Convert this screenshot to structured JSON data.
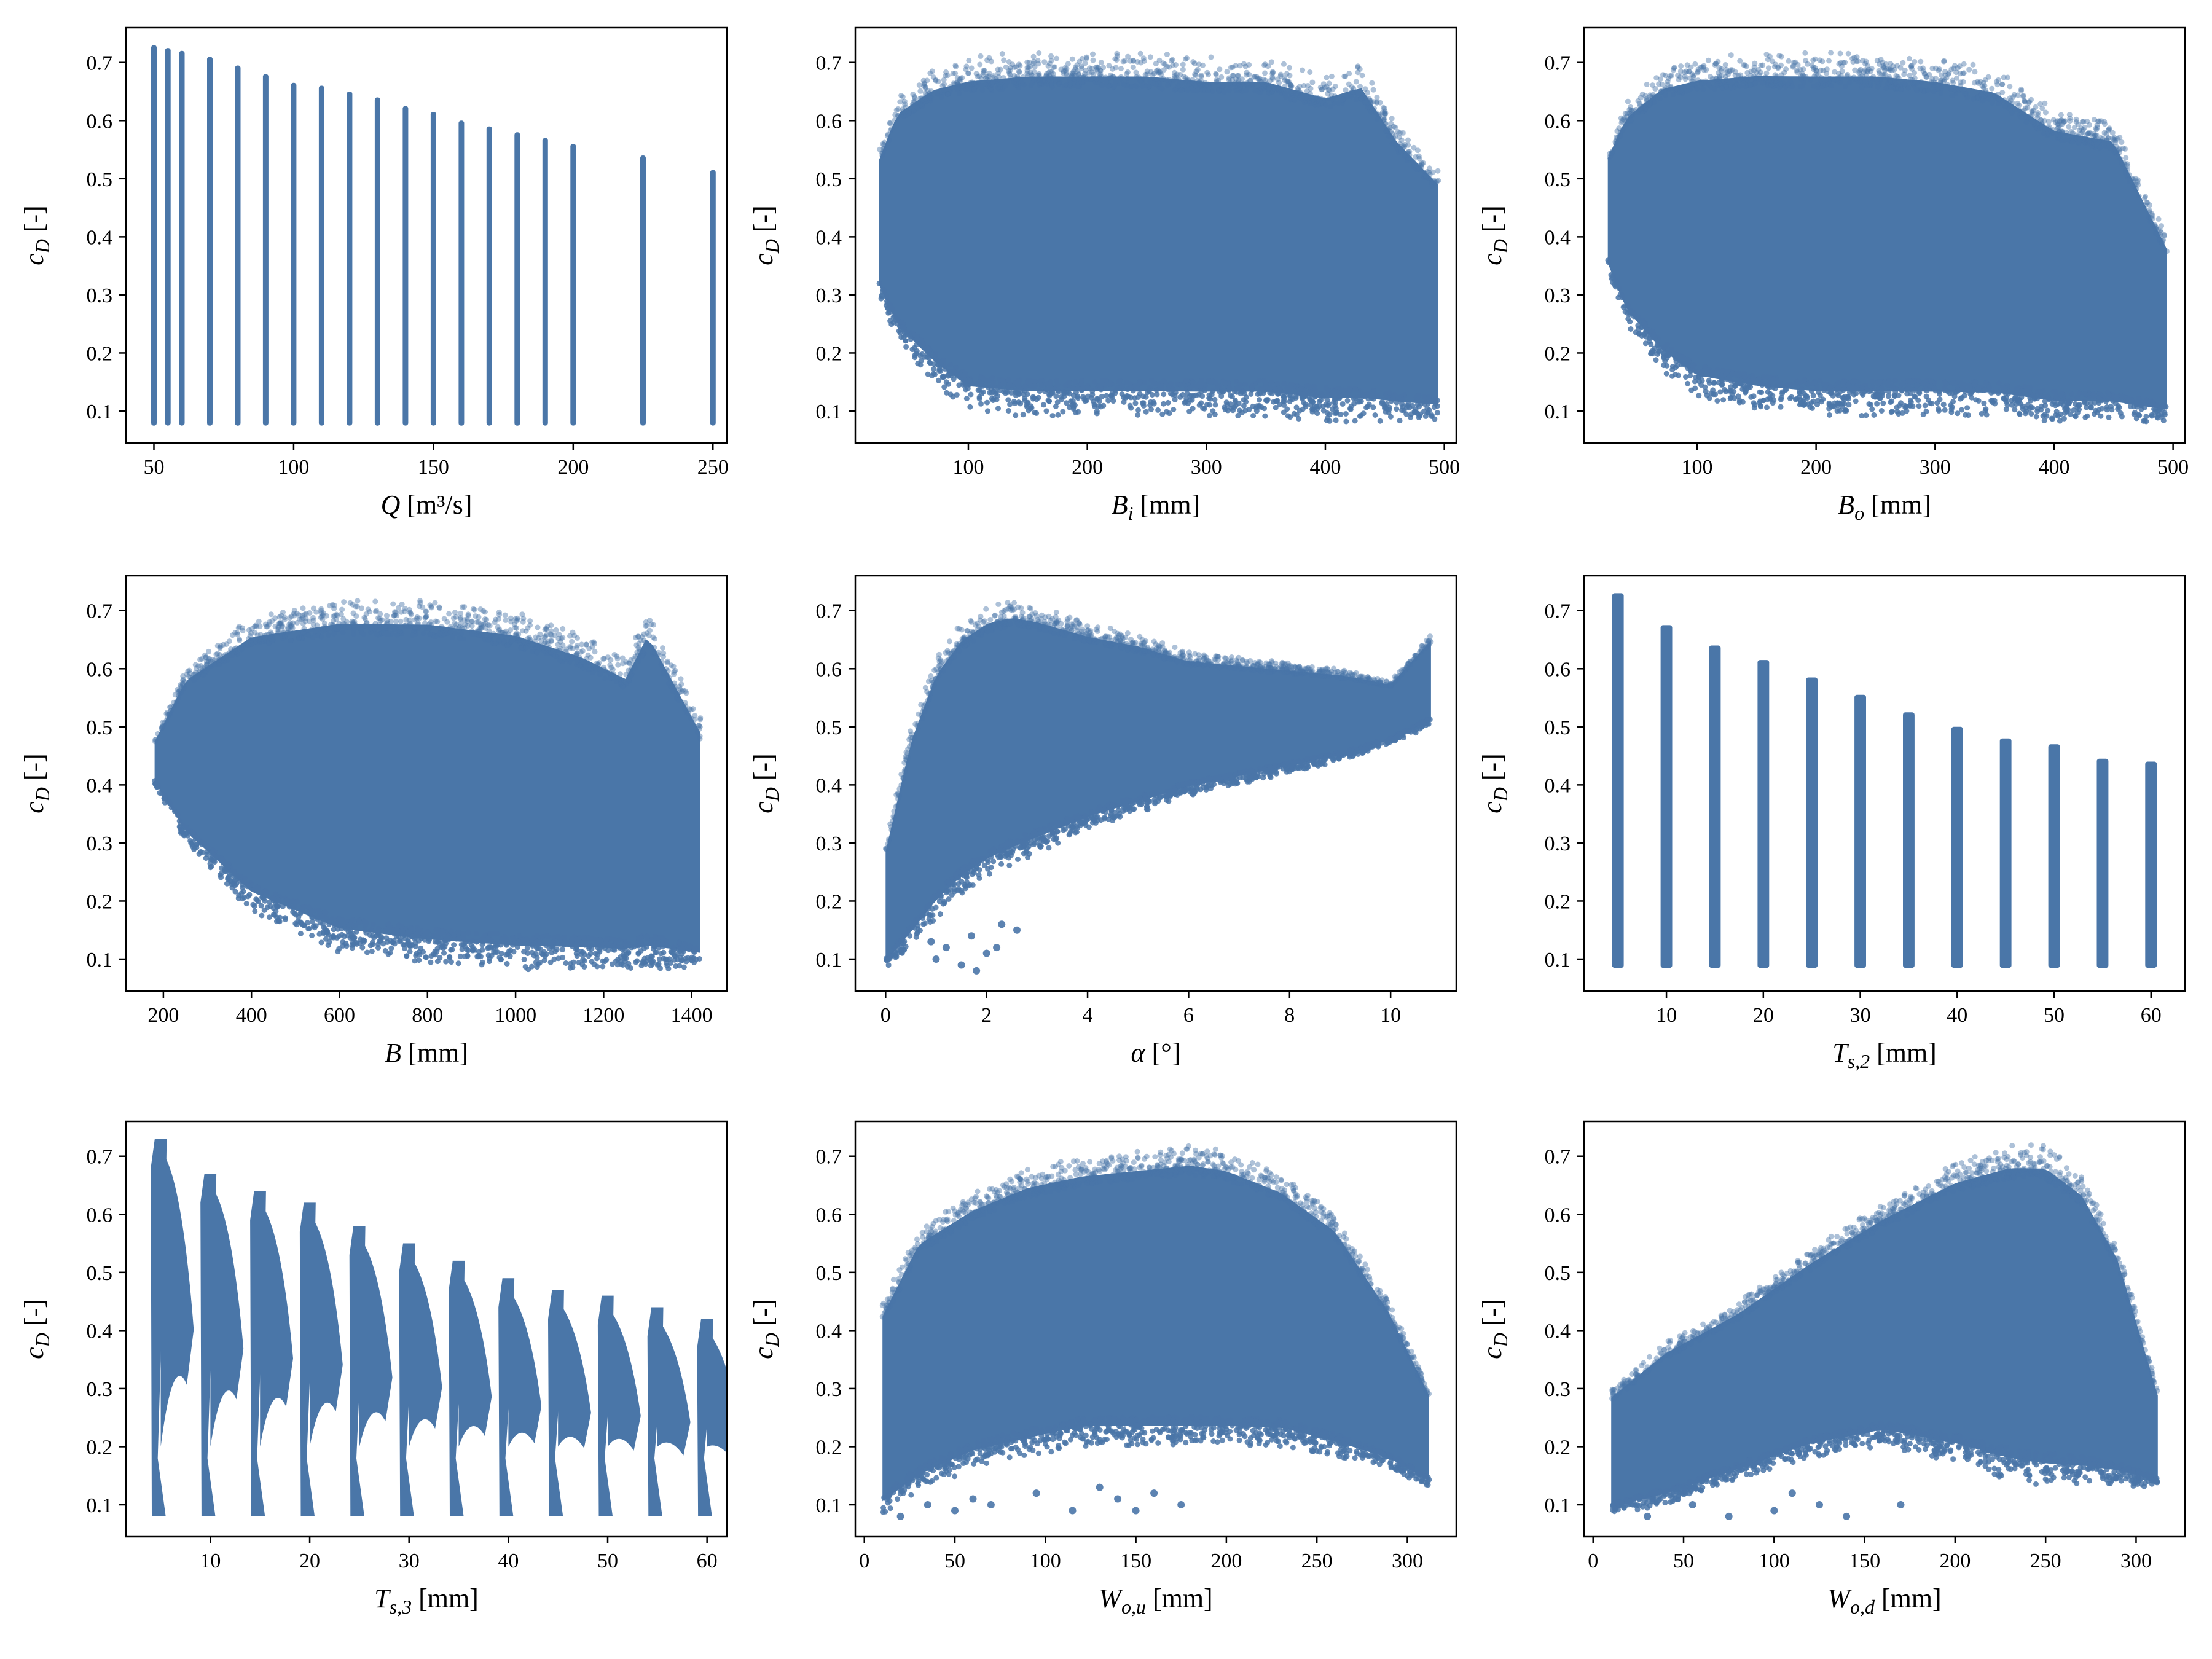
{
  "chart_data": [
    {
      "type": "scatter",
      "xlabel": {
        "var": "Q",
        "sub": "",
        "unit": "[m³/s]"
      },
      "ylabel": {
        "var": "c",
        "sub": "D",
        "unit": "[-]"
      },
      "xlim": [
        40,
        255
      ],
      "ylim": [
        0.045,
        0.76
      ],
      "xticks": [
        50,
        100,
        150,
        200,
        250
      ],
      "yticks": [
        0.1,
        0.2,
        0.3,
        0.4,
        0.5,
        0.6,
        0.7
      ],
      "pattern": "bands",
      "bands": [
        [
          50,
          0.73
        ],
        [
          55,
          0.725
        ],
        [
          60,
          0.72
        ],
        [
          70,
          0.71
        ],
        [
          80,
          0.695
        ],
        [
          90,
          0.68
        ],
        [
          100,
          0.665
        ],
        [
          110,
          0.66
        ],
        [
          120,
          0.65
        ],
        [
          130,
          0.64
        ],
        [
          140,
          0.625
        ],
        [
          150,
          0.615
        ],
        [
          160,
          0.6
        ],
        [
          170,
          0.59
        ],
        [
          180,
          0.58
        ],
        [
          190,
          0.57
        ],
        [
          200,
          0.56
        ],
        [
          225,
          0.54
        ],
        [
          250,
          0.515
        ]
      ],
      "band_ymin": 0.075
    },
    {
      "type": "scatter",
      "xlabel": {
        "var": "B",
        "sub": "i",
        "unit": "[mm]"
      },
      "ylabel": {
        "var": "c",
        "sub": "D",
        "unit": "[-]"
      },
      "xlim": [
        5,
        510
      ],
      "ylim": [
        0.045,
        0.76
      ],
      "xticks": [
        100,
        200,
        300,
        400,
        500
      ],
      "yticks": [
        0.1,
        0.2,
        0.3,
        0.4,
        0.5,
        0.6,
        0.7
      ],
      "pattern": "cloud",
      "envelope_x": [
        25,
        40,
        70,
        100,
        150,
        200,
        250,
        300,
        350,
        400,
        430,
        460,
        495
      ],
      "envelope_top": [
        0.55,
        0.64,
        0.69,
        0.71,
        0.72,
        0.72,
        0.72,
        0.71,
        0.71,
        0.68,
        0.7,
        0.6,
        0.52
      ],
      "envelope_bottom": [
        0.3,
        0.22,
        0.15,
        0.1,
        0.09,
        0.09,
        0.09,
        0.09,
        0.09,
        0.08,
        0.08,
        0.08,
        0.08
      ]
    },
    {
      "type": "scatter",
      "xlabel": {
        "var": "B",
        "sub": "o",
        "unit": "[mm]"
      },
      "ylabel": {
        "var": "c",
        "sub": "D",
        "unit": "[-]"
      },
      "xlim": [
        5,
        510
      ],
      "ylim": [
        0.045,
        0.76
      ],
      "xticks": [
        100,
        200,
        300,
        400,
        500
      ],
      "yticks": [
        0.1,
        0.2,
        0.3,
        0.4,
        0.5,
        0.6,
        0.7
      ],
      "pattern": "cloud",
      "envelope_x": [
        25,
        40,
        70,
        100,
        150,
        200,
        250,
        300,
        350,
        400,
        450,
        495
      ],
      "envelope_top": [
        0.55,
        0.63,
        0.69,
        0.71,
        0.72,
        0.72,
        0.72,
        0.71,
        0.69,
        0.62,
        0.6,
        0.4
      ],
      "envelope_bottom": [
        0.34,
        0.25,
        0.17,
        0.12,
        0.1,
        0.09,
        0.09,
        0.09,
        0.09,
        0.08,
        0.08,
        0.08
      ]
    },
    {
      "type": "scatter",
      "xlabel": {
        "var": "B",
        "sub": "",
        "unit": "[mm]"
      },
      "ylabel": {
        "var": "c",
        "sub": "D",
        "unit": "[-]"
      },
      "xlim": [
        115,
        1480
      ],
      "ylim": [
        0.045,
        0.76
      ],
      "xticks": [
        200,
        400,
        600,
        800,
        1000,
        1200,
        1400
      ],
      "yticks": [
        0.1,
        0.2,
        0.3,
        0.4,
        0.5,
        0.6,
        0.7
      ],
      "pattern": "cloud",
      "envelope_x": [
        180,
        250,
        400,
        600,
        800,
        1000,
        1150,
        1250,
        1300,
        1420
      ],
      "envelope_top": [
        0.48,
        0.6,
        0.69,
        0.72,
        0.72,
        0.7,
        0.66,
        0.62,
        0.7,
        0.52
      ],
      "envelope_bottom": [
        0.4,
        0.3,
        0.18,
        0.11,
        0.09,
        0.08,
        0.08,
        0.08,
        0.08,
        0.08
      ]
    },
    {
      "type": "scatter",
      "xlabel": {
        "var": "α",
        "sub": "",
        "unit": "[°]"
      },
      "ylabel": {
        "var": "c",
        "sub": "D",
        "unit": "[-]"
      },
      "xlim": [
        -0.6,
        11.3
      ],
      "ylim": [
        0.045,
        0.76
      ],
      "xticks": [
        0,
        2,
        4,
        6,
        8,
        10
      ],
      "yticks": [
        0.1,
        0.2,
        0.3,
        0.4,
        0.5,
        0.6,
        0.7
      ],
      "pattern": "cloud",
      "envelope_x": [
        0,
        0.5,
        1.0,
        1.5,
        2.0,
        2.5,
        3.0,
        4.0,
        5.0,
        6.0,
        7.0,
        8.0,
        9.0,
        10.0,
        10.8
      ],
      "envelope_top": [
        0.3,
        0.5,
        0.62,
        0.68,
        0.71,
        0.72,
        0.71,
        0.68,
        0.66,
        0.63,
        0.62,
        0.61,
        0.6,
        0.58,
        0.66
      ],
      "envelope_bottom": [
        0.08,
        0.12,
        0.17,
        0.21,
        0.24,
        0.26,
        0.28,
        0.32,
        0.35,
        0.38,
        0.4,
        0.42,
        0.44,
        0.47,
        0.5
      ],
      "outliers": [
        [
          1.0,
          0.1
        ],
        [
          1.2,
          0.12
        ],
        [
          1.5,
          0.09
        ],
        [
          1.7,
          0.14
        ],
        [
          2.0,
          0.11
        ],
        [
          2.2,
          0.12
        ],
        [
          1.8,
          0.08
        ],
        [
          2.6,
          0.15
        ],
        [
          2.3,
          0.16
        ],
        [
          0.9,
          0.13
        ]
      ]
    },
    {
      "type": "scatter",
      "xlabel": {
        "var": "T",
        "sub": "s,2",
        "unit": "[mm]"
      },
      "ylabel": {
        "var": "c",
        "sub": "D",
        "unit": "[-]"
      },
      "xlim": [
        1.5,
        63.5
      ],
      "ylim": [
        0.045,
        0.76
      ],
      "xticks": [
        10,
        20,
        30,
        40,
        50,
        60
      ],
      "yticks": [
        0.1,
        0.2,
        0.3,
        0.4,
        0.5,
        0.6,
        0.7
      ],
      "pattern": "bands",
      "bands": [
        [
          5,
          0.73
        ],
        [
          10,
          0.675
        ],
        [
          15,
          0.64
        ],
        [
          20,
          0.615
        ],
        [
          25,
          0.585
        ],
        [
          30,
          0.555
        ],
        [
          35,
          0.525
        ],
        [
          40,
          0.5
        ],
        [
          45,
          0.48
        ],
        [
          50,
          0.47
        ],
        [
          55,
          0.445
        ],
        [
          60,
          0.44
        ]
      ],
      "band_ymin": 0.085,
      "band_width": 1.2
    },
    {
      "type": "scatter",
      "xlabel": {
        "var": "T",
        "sub": "s,3",
        "unit": "[mm]"
      },
      "ylabel": {
        "var": "c",
        "sub": "D",
        "unit": "[-]"
      },
      "xlim": [
        1.5,
        62
      ],
      "ylim": [
        0.045,
        0.76
      ],
      "xticks": [
        10,
        20,
        30,
        40,
        50,
        60
      ],
      "yticks": [
        0.1,
        0.2,
        0.3,
        0.4,
        0.5,
        0.6,
        0.7
      ],
      "pattern": "slanted",
      "bands": [
        [
          5,
          0.73
        ],
        [
          10,
          0.67
        ],
        [
          15,
          0.64
        ],
        [
          20,
          0.62
        ],
        [
          25,
          0.58
        ],
        [
          30,
          0.55
        ],
        [
          35,
          0.52
        ],
        [
          40,
          0.49
        ],
        [
          45,
          0.47
        ],
        [
          50,
          0.46
        ],
        [
          55,
          0.44
        ],
        [
          60,
          0.42
        ]
      ],
      "band_ymin": 0.08,
      "band_width": 3.5
    },
    {
      "type": "scatter",
      "xlabel": {
        "var": "W",
        "sub": "o,u",
        "unit": "[mm]"
      },
      "ylabel": {
        "var": "c",
        "sub": "D",
        "unit": "[-]"
      },
      "xlim": [
        -5,
        327
      ],
      "ylim": [
        0.045,
        0.76
      ],
      "xticks": [
        0,
        50,
        100,
        150,
        200,
        250,
        300
      ],
      "yticks": [
        0.1,
        0.2,
        0.3,
        0.4,
        0.5,
        0.6,
        0.7
      ],
      "pattern": "cloud",
      "envelope_x": [
        10,
        30,
        60,
        90,
        120,
        150,
        180,
        200,
        230,
        260,
        290,
        312
      ],
      "envelope_top": [
        0.45,
        0.58,
        0.64,
        0.68,
        0.7,
        0.71,
        0.72,
        0.71,
        0.67,
        0.6,
        0.45,
        0.3
      ],
      "envelope_bottom": [
        0.08,
        0.12,
        0.16,
        0.18,
        0.2,
        0.2,
        0.2,
        0.2,
        0.2,
        0.18,
        0.16,
        0.13
      ],
      "outliers": [
        [
          20,
          0.08
        ],
        [
          35,
          0.1
        ],
        [
          50,
          0.09
        ],
        [
          70,
          0.1
        ],
        [
          95,
          0.12
        ],
        [
          115,
          0.09
        ],
        [
          140,
          0.11
        ],
        [
          160,
          0.12
        ],
        [
          175,
          0.1
        ],
        [
          130,
          0.13
        ],
        [
          60,
          0.11
        ],
        [
          150,
          0.09
        ]
      ]
    },
    {
      "type": "scatter",
      "xlabel": {
        "var": "W",
        "sub": "o,d",
        "unit": "[mm]"
      },
      "ylabel": {
        "var": "c",
        "sub": "D",
        "unit": "[-]"
      },
      "xlim": [
        -5,
        327
      ],
      "ylim": [
        0.045,
        0.76
      ],
      "xticks": [
        0,
        50,
        100,
        150,
        200,
        250,
        300
      ],
      "yticks": [
        0.1,
        0.2,
        0.3,
        0.4,
        0.5,
        0.6,
        0.7
      ],
      "pattern": "cloud",
      "envelope_x": [
        10,
        40,
        80,
        120,
        160,
        200,
        230,
        250,
        270,
        290,
        312
      ],
      "envelope_top": [
        0.3,
        0.38,
        0.45,
        0.54,
        0.62,
        0.69,
        0.72,
        0.72,
        0.67,
        0.55,
        0.3
      ],
      "envelope_bottom": [
        0.08,
        0.1,
        0.14,
        0.18,
        0.2,
        0.17,
        0.14,
        0.13,
        0.13,
        0.13,
        0.13
      ],
      "outliers": [
        [
          30,
          0.08
        ],
        [
          55,
          0.1
        ],
        [
          75,
          0.08
        ],
        [
          100,
          0.09
        ],
        [
          125,
          0.1
        ],
        [
          140,
          0.08
        ],
        [
          170,
          0.1
        ],
        [
          110,
          0.12
        ]
      ]
    }
  ],
  "style": {
    "point_color": "#4a76a8",
    "axis_color": "#000000"
  }
}
